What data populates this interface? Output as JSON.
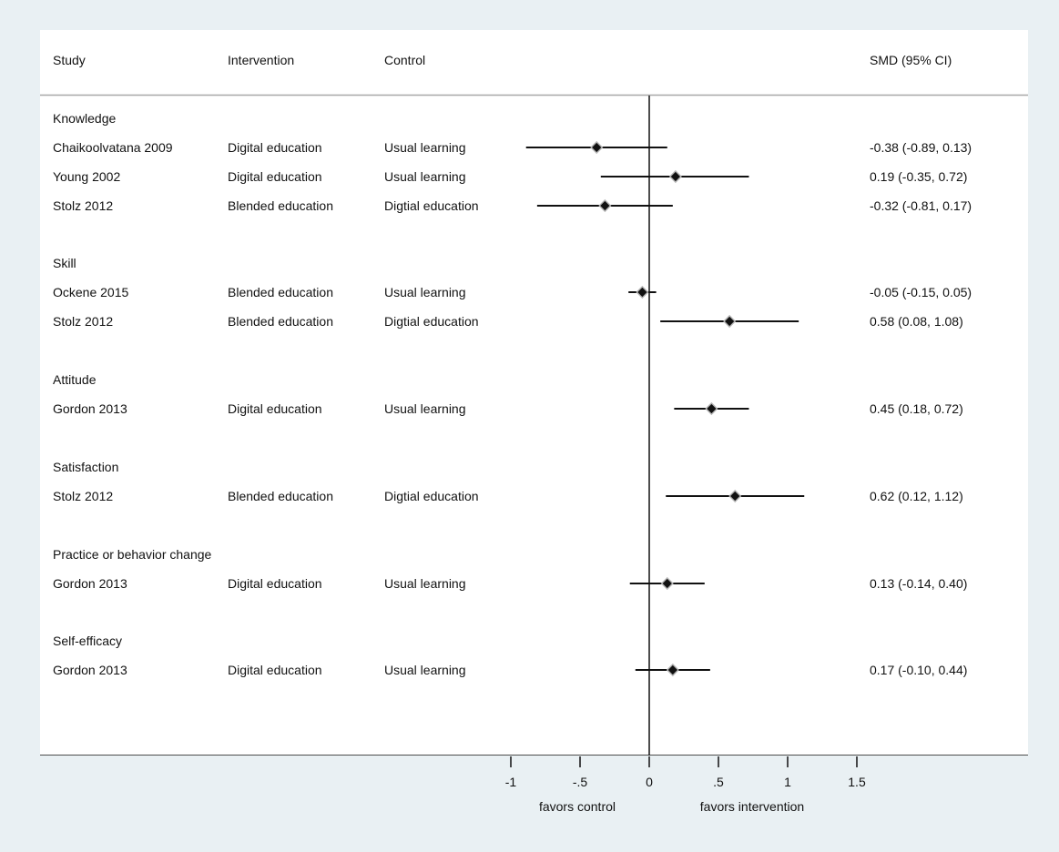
{
  "chart_data": {
    "type": "forest",
    "columns": {
      "study": "Study",
      "intervention": "Intervention",
      "control": "Control",
      "effect": "SMD (95% CI)"
    },
    "groups": [
      {
        "label": "Knowledge",
        "rows": [
          {
            "study": "Chaikoolvatana 2009",
            "intervention": "Digital education",
            "control": "Usual learning",
            "smd": -0.38,
            "lo": -0.89,
            "hi": 0.13,
            "ci_text": "-0.38 (-0.89, 0.13)"
          },
          {
            "study": "Young 2002",
            "intervention": "Digital education",
            "control": "Usual learning",
            "smd": 0.19,
            "lo": -0.35,
            "hi": 0.72,
            "ci_text": "0.19 (-0.35, 0.72)"
          },
          {
            "study": "Stolz 2012",
            "intervention": "Blended education",
            "control": "Digtial education",
            "smd": -0.32,
            "lo": -0.81,
            "hi": 0.17,
            "ci_text": "-0.32 (-0.81, 0.17)"
          }
        ]
      },
      {
        "label": "Skill",
        "rows": [
          {
            "study": "Ockene 2015",
            "intervention": "Blended education",
            "control": "Usual learning",
            "smd": -0.05,
            "lo": -0.15,
            "hi": 0.05,
            "ci_text": "-0.05 (-0.15, 0.05)"
          },
          {
            "study": "Stolz 2012",
            "intervention": "Blended education",
            "control": "Digtial education",
            "smd": 0.58,
            "lo": 0.08,
            "hi": 1.08,
            "ci_text": "0.58 (0.08, 1.08)"
          }
        ]
      },
      {
        "label": "Attitude",
        "rows": [
          {
            "study": "Gordon 2013",
            "intervention": "Digital education",
            "control": "Usual learning",
            "smd": 0.45,
            "lo": 0.18,
            "hi": 0.72,
            "ci_text": "0.45 (0.18, 0.72)"
          }
        ]
      },
      {
        "label": "Satisfaction",
        "rows": [
          {
            "study": "Stolz 2012",
            "intervention": "Blended education",
            "control": "Digtial education",
            "smd": 0.62,
            "lo": 0.12,
            "hi": 1.12,
            "ci_text": "0.62 (0.12, 1.12)"
          }
        ]
      },
      {
        "label": "Practice or behavior change",
        "rows": [
          {
            "study": "Gordon 2013",
            "intervention": "Digital education",
            "control": "Usual learning",
            "smd": 0.13,
            "lo": -0.14,
            "hi": 0.4,
            "ci_text": "0.13 (-0.14, 0.40)"
          }
        ]
      },
      {
        "label": "Self-efficacy",
        "rows": [
          {
            "study": "Gordon 2013",
            "intervention": "Digital education",
            "control": "Usual learning",
            "smd": 0.17,
            "lo": -0.1,
            "hi": 0.44,
            "ci_text": "0.17 (-0.10, 0.44)"
          }
        ]
      }
    ],
    "x_ticks": [
      {
        "value": -1,
        "label": "-1"
      },
      {
        "value": -0.5,
        "label": "-.5"
      },
      {
        "value": 0,
        "label": "0"
      },
      {
        "value": 0.5,
        "label": ".5"
      },
      {
        "value": 1,
        "label": "1"
      },
      {
        "value": 1.5,
        "label": "1.5"
      }
    ],
    "null_line": 0,
    "favors_left": "favors control",
    "favors_right": "favors intervention",
    "colors": {
      "background": "#e9f0f3",
      "panel": "#ffffff",
      "ink": "#111111",
      "marker_halo": "#b5b5b5"
    }
  }
}
